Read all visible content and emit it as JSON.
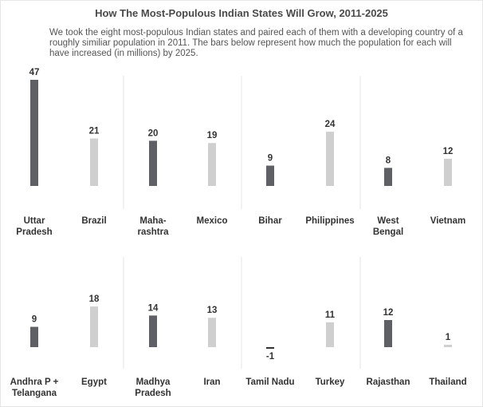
{
  "title": "How The Most-Populous Indian States Will Grow, 2011-2025",
  "subtitle": "We took the eight most-populous Indian states and paired each of them with a developing country of a roughly similiar population in 2011. The bars below represent how much the population for each will have increased (in millions) by 2025.",
  "colors": {
    "state": "#5f6066",
    "country": "#cfcfcf",
    "divider": "#e6e6e6"
  },
  "chart_data": {
    "type": "bar",
    "title": "How The Most-Populous Indian States Will Grow, 2011-2025",
    "ylabel": "",
    "panels": [
      {
        "pairs": [
          {
            "state": {
              "label": [
                "Uttar",
                "Pradesh"
              ],
              "value": 47
            },
            "country": {
              "label": [
                "Brazil"
              ],
              "value": 21
            }
          },
          {
            "state": {
              "label": [
                "Maha-",
                "rashtra"
              ],
              "value": 20
            },
            "country": {
              "label": [
                "Mexico"
              ],
              "value": 19
            }
          },
          {
            "state": {
              "label": [
                "Bihar"
              ],
              "value": 9
            },
            "country": {
              "label": [
                "Philippines"
              ],
              "value": 24
            }
          },
          {
            "state": {
              "label": [
                "West",
                "Bengal"
              ],
              "value": 8
            },
            "country": {
              "label": [
                "Vietnam"
              ],
              "value": 12
            }
          }
        ]
      },
      {
        "pairs": [
          {
            "state": {
              "label": [
                "Andhra P +",
                "Telangana"
              ],
              "value": 9
            },
            "country": {
              "label": [
                "Egypt"
              ],
              "value": 18
            }
          },
          {
            "state": {
              "label": [
                "Madhya",
                "Pradesh"
              ],
              "value": 14
            },
            "country": {
              "label": [
                "Iran"
              ],
              "value": 13
            }
          },
          {
            "state": {
              "label": [
                "Tamil Nadu"
              ],
              "value": -1
            },
            "country": {
              "label": [
                "Turkey"
              ],
              "value": 11
            }
          },
          {
            "state": {
              "label": [
                "Rajasthan"
              ],
              "value": 12
            },
            "country": {
              "label": [
                "Thailand"
              ],
              "value": 1
            }
          }
        ]
      }
    ]
  }
}
